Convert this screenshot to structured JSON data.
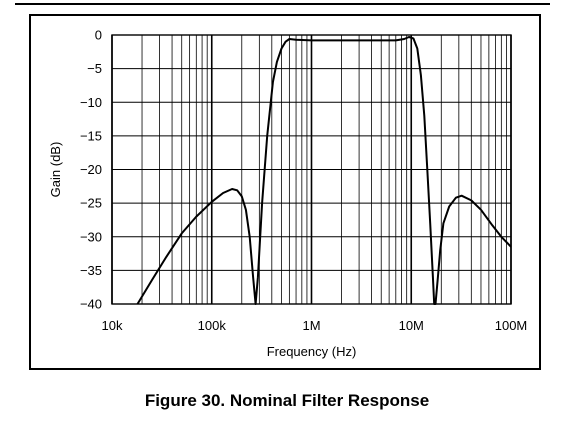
{
  "caption": "Figure 30. Nominal Filter Response",
  "chart_data": {
    "type": "line",
    "title": "",
    "xlabel": "Frequency (Hz)",
    "ylabel": "Gain (dB)",
    "xscale": "log",
    "xlim": [
      10000,
      100000000
    ],
    "ylim": [
      -40,
      0
    ],
    "grid": true,
    "x_ticks": [
      {
        "value": 10000,
        "label": "10k"
      },
      {
        "value": 100000,
        "label": "100k"
      },
      {
        "value": 1000000,
        "label": "1M"
      },
      {
        "value": 10000000,
        "label": "10M"
      },
      {
        "value": 100000000,
        "label": "100M"
      }
    ],
    "y_ticks": [
      {
        "value": 0,
        "label": "0"
      },
      {
        "value": -5,
        "label": "−5"
      },
      {
        "value": -10,
        "label": "−10"
      },
      {
        "value": -15,
        "label": "−15"
      },
      {
        "value": -20,
        "label": "−20"
      },
      {
        "value": -25,
        "label": "−25"
      },
      {
        "value": -30,
        "label": "−30"
      },
      {
        "value": -35,
        "label": "−35"
      },
      {
        "value": -40,
        "label": "−40"
      }
    ],
    "series": [
      {
        "name": "",
        "color": "#000000",
        "points": [
          [
            18000,
            -40
          ],
          [
            25000,
            -36.5
          ],
          [
            35000,
            -33
          ],
          [
            50000,
            -29.5
          ],
          [
            70000,
            -27
          ],
          [
            100000,
            -24.8
          ],
          [
            130000,
            -23.5
          ],
          [
            160000,
            -22.9
          ],
          [
            180000,
            -23.1
          ],
          [
            200000,
            -24
          ],
          [
            220000,
            -26
          ],
          [
            240000,
            -30
          ],
          [
            260000,
            -36
          ],
          [
            275000,
            -40
          ],
          [
            290000,
            -36
          ],
          [
            320000,
            -25
          ],
          [
            360000,
            -15
          ],
          [
            410000,
            -7
          ],
          [
            450000,
            -4
          ],
          [
            500000,
            -2
          ],
          [
            550000,
            -1
          ],
          [
            600000,
            -0.6
          ],
          [
            700000,
            -0.7
          ],
          [
            1000000,
            -0.8
          ],
          [
            3000000,
            -0.8
          ],
          [
            7000000,
            -0.8
          ],
          [
            8500000,
            -0.6
          ],
          [
            9500000,
            -0.3
          ],
          [
            10500000,
            -0.5
          ],
          [
            11500000,
            -2
          ],
          [
            12500000,
            -6
          ],
          [
            13500000,
            -12
          ],
          [
            14500000,
            -20
          ],
          [
            15500000,
            -28
          ],
          [
            16500000,
            -36
          ],
          [
            17000000,
            -40
          ],
          [
            17500000,
            -40
          ],
          [
            18500000,
            -36
          ],
          [
            19500000,
            -32
          ],
          [
            21000000,
            -28
          ],
          [
            24000000,
            -25.5
          ],
          [
            28000000,
            -24.2
          ],
          [
            32000000,
            -23.9
          ],
          [
            40000000,
            -24.6
          ],
          [
            50000000,
            -26
          ],
          [
            65000000,
            -28.3
          ],
          [
            80000000,
            -30
          ],
          [
            100000000,
            -31.5
          ]
        ]
      }
    ]
  }
}
